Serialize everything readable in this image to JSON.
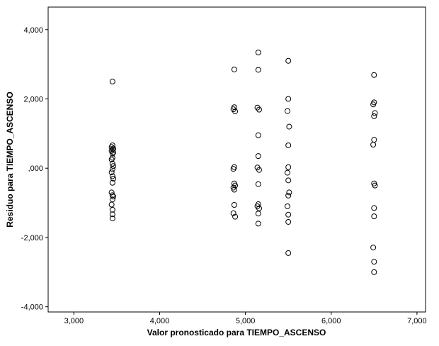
{
  "page": {
    "background": "#ffffff"
  },
  "chart_data": {
    "type": "scatter",
    "title": "",
    "xlabel": "Valor pronosticado para TIEMPO_ASCENSO",
    "ylabel": "Residuo para TIEMPO_ASCENSO",
    "xlim": [
      2700,
      7100
    ],
    "ylim": [
      -4150,
      4650
    ],
    "grid": false,
    "plot_bg": "#ffffff",
    "frame_color": "#000000",
    "marker": {
      "shape": "circle-open",
      "color": "#000000",
      "radius": 3.5
    },
    "x_ticks": [
      {
        "value": 3000,
        "label": "3,000"
      },
      {
        "value": 4000,
        "label": "4,000"
      },
      {
        "value": 5000,
        "label": "5,000"
      },
      {
        "value": 6000,
        "label": "6,000"
      },
      {
        "value": 7000,
        "label": "7,000"
      }
    ],
    "y_ticks": [
      {
        "value": 4000,
        "label": "4,000"
      },
      {
        "value": 2000,
        "label": "2,000"
      },
      {
        "value": 0,
        "label": ",000"
      },
      {
        "value": -2000,
        "label": "-2,000"
      },
      {
        "value": -4000,
        "label": "-4,000"
      }
    ],
    "points": [
      [
        3450,
        2500
      ],
      [
        3450,
        660
      ],
      [
        3440,
        610
      ],
      [
        3460,
        570
      ],
      [
        3450,
        540
      ],
      [
        3440,
        500
      ],
      [
        3460,
        460
      ],
      [
        3450,
        420
      ],
      [
        3450,
        300
      ],
      [
        3440,
        250
      ],
      [
        3450,
        130
      ],
      [
        3460,
        60
      ],
      [
        3450,
        -30
      ],
      [
        3440,
        -120
      ],
      [
        3450,
        -230
      ],
      [
        3460,
        -300
      ],
      [
        3450,
        -420
      ],
      [
        3440,
        -700
      ],
      [
        3450,
        -780
      ],
      [
        3460,
        -820
      ],
      [
        3450,
        -900
      ],
      [
        3440,
        -1050
      ],
      [
        3450,
        -1200
      ],
      [
        3450,
        -1330
      ],
      [
        3450,
        -1450
      ],
      [
        4870,
        2850
      ],
      [
        4870,
        1760
      ],
      [
        4860,
        1700
      ],
      [
        4880,
        1640
      ],
      [
        4870,
        30
      ],
      [
        4860,
        -20
      ],
      [
        4870,
        -440
      ],
      [
        4880,
        -500
      ],
      [
        4860,
        -560
      ],
      [
        4870,
        -620
      ],
      [
        4870,
        -1060
      ],
      [
        4860,
        -1300
      ],
      [
        4880,
        -1400
      ],
      [
        5150,
        3340
      ],
      [
        5150,
        2840
      ],
      [
        5140,
        1750
      ],
      [
        5160,
        1690
      ],
      [
        5150,
        950
      ],
      [
        5150,
        350
      ],
      [
        5140,
        20
      ],
      [
        5160,
        -50
      ],
      [
        5150,
        -460
      ],
      [
        5150,
        -1040
      ],
      [
        5140,
        -1100
      ],
      [
        5160,
        -1160
      ],
      [
        5150,
        -1310
      ],
      [
        5150,
        -1600
      ],
      [
        5500,
        3100
      ],
      [
        5500,
        2000
      ],
      [
        5490,
        1650
      ],
      [
        5510,
        1200
      ],
      [
        5500,
        660
      ],
      [
        5500,
        30
      ],
      [
        5490,
        -130
      ],
      [
        5500,
        -350
      ],
      [
        5510,
        -700
      ],
      [
        5500,
        -790
      ],
      [
        5490,
        -1100
      ],
      [
        5500,
        -1340
      ],
      [
        5500,
        -1550
      ],
      [
        5500,
        -2450
      ],
      [
        6500,
        2690
      ],
      [
        6500,
        1900
      ],
      [
        6490,
        1840
      ],
      [
        6510,
        1590
      ],
      [
        6500,
        1500
      ],
      [
        6500,
        820
      ],
      [
        6490,
        680
      ],
      [
        6500,
        -440
      ],
      [
        6510,
        -500
      ],
      [
        6500,
        -1150
      ],
      [
        6500,
        -1390
      ],
      [
        6490,
        -2290
      ],
      [
        6500,
        -2700
      ],
      [
        6500,
        -3000
      ]
    ]
  }
}
